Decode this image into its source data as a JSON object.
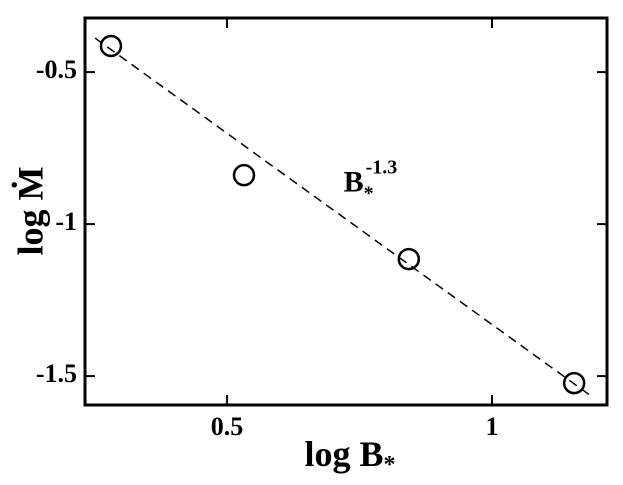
{
  "chart_data": {
    "type": "scatter",
    "x": [
      0.281,
      0.532,
      0.843,
      1.155
    ],
    "values": [
      -0.414,
      -0.839,
      -1.115,
      -1.523
    ],
    "xlim": [
      0.232,
      1.217
    ],
    "ylim": [
      -1.595,
      -0.322
    ],
    "xticks": [
      0.5,
      1
    ],
    "yticks": [
      -0.5,
      -1,
      -1.5
    ],
    "fit": {
      "x": [
        0.251,
        1.185
      ],
      "y": [
        -0.388,
        -1.563
      ]
    },
    "xlabel": "log B",
    "xlabel_sub": "*",
    "ylabel": "log Ṁ",
    "annotation": {
      "text": "B",
      "sub": "*",
      "sup": "-1.3",
      "x": 0.72,
      "y": -0.87
    },
    "color": "#000000"
  }
}
